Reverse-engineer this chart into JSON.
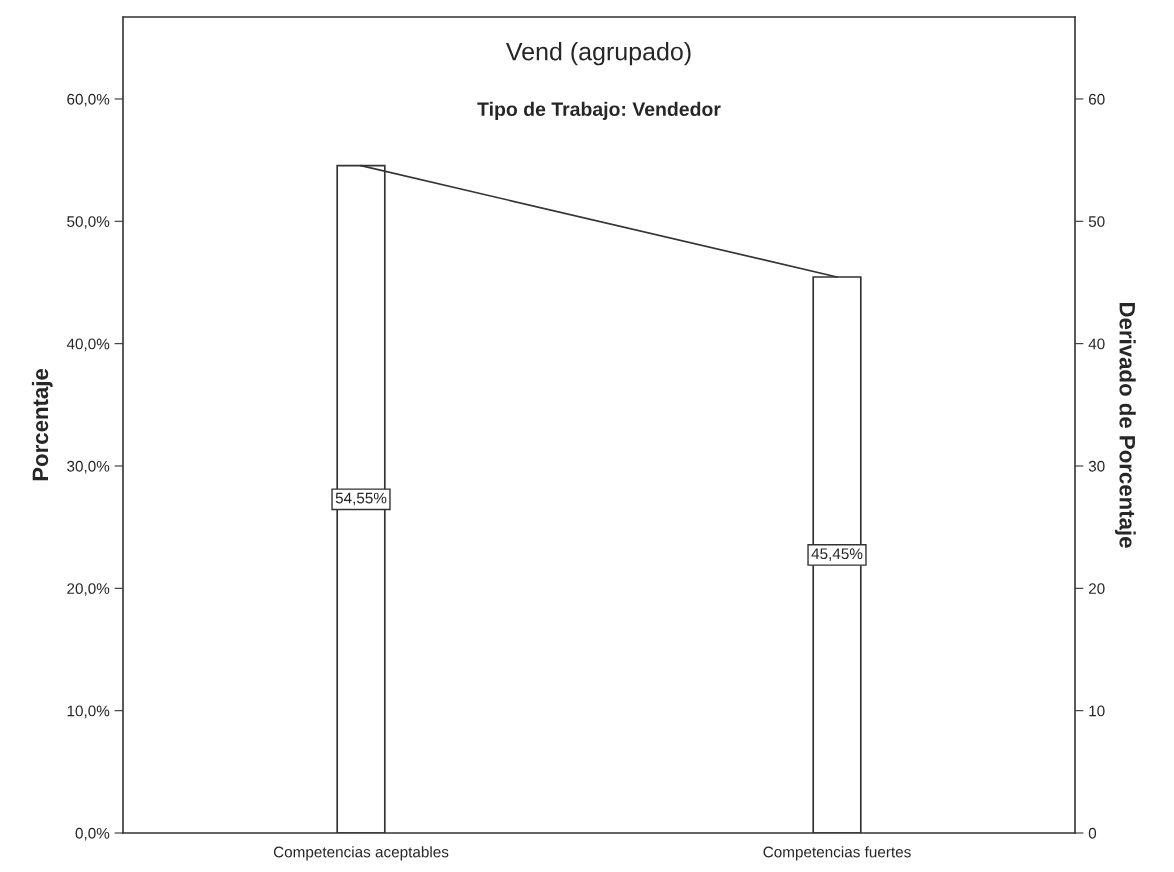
{
  "chart_data": {
    "type": "bar",
    "title": "Vend (agrupado)",
    "subtitle": "Tipo de Trabajo: Vendedor",
    "ylabel": "Porcentaje",
    "y2label": "Derivado de Porcentaje",
    "categories": [
      "Competencias aceptables",
      "Competencias fuertes"
    ],
    "series": [
      {
        "color": "#ffffff",
        "values": [
          54.55,
          45.45
        ],
        "value_labels": [
          "54,55%",
          "45,45%"
        ]
      },
      {
        "type": "line",
        "axis": "y2",
        "color": "#333333",
        "values": [
          54.55,
          45.45
        ]
      }
    ],
    "ylim": [
      0,
      66.7
    ],
    "yticks": [
      {
        "value": 0,
        "label": "0,0%"
      },
      {
        "value": 10,
        "label": "10,0%"
      },
      {
        "value": 20,
        "label": "20,0%"
      },
      {
        "value": 30,
        "label": "30,0%"
      },
      {
        "value": 40,
        "label": "40,0%"
      },
      {
        "value": 50,
        "label": "50,0%"
      },
      {
        "value": 60,
        "label": "60,0%"
      }
    ],
    "y2lim": [
      0,
      66.7
    ],
    "y2ticks": [
      0,
      10,
      20,
      30,
      40,
      50,
      60
    ],
    "grid": false
  }
}
